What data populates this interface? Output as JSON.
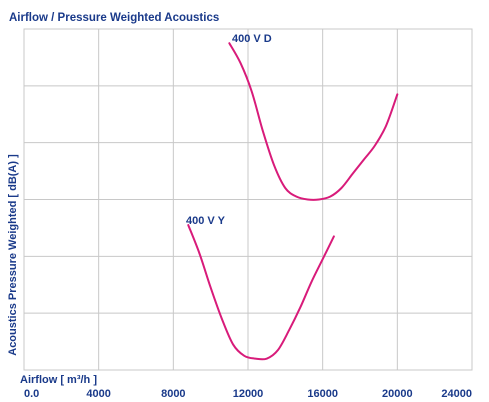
{
  "chart_data": {
    "type": "line",
    "title": "Airflow / Pressure Weighted Acoustics",
    "xlabel": "Airflow [ m³/h ]",
    "ylabel": "Acoustics Pressure Weighted [ dB(A) ]",
    "x_ticks": [
      "0.0",
      "4000",
      "8000",
      "12000",
      "16000",
      "20000",
      "24000"
    ],
    "xlim": [
      0,
      24000
    ],
    "ylim": [
      0,
      6
    ],
    "y_gridlines": 6,
    "y_ticks_labeled": false,
    "grid": true,
    "line_color": "#d81b7a",
    "text_color": "#1a3a8a",
    "series": [
      {
        "name": "400 V D",
        "x": [
          11000,
          11600,
          12200,
          12800,
          13400,
          14000,
          14600,
          15200,
          15800,
          16400,
          17000,
          17600,
          18200,
          18800,
          19400,
          20000
        ],
        "y": [
          5.75,
          5.4,
          4.9,
          4.2,
          3.6,
          3.2,
          3.05,
          3.0,
          3.0,
          3.05,
          3.2,
          3.45,
          3.7,
          3.95,
          4.3,
          4.85
        ]
      },
      {
        "name": "400 V Y",
        "x": [
          8800,
          9400,
          10000,
          10600,
          11200,
          11800,
          12400,
          13000,
          13600,
          14200,
          14800,
          15400,
          16000,
          16600
        ],
        "y": [
          2.55,
          2.05,
          1.45,
          0.9,
          0.45,
          0.25,
          0.2,
          0.2,
          0.35,
          0.7,
          1.1,
          1.55,
          1.95,
          2.35
        ]
      }
    ]
  }
}
